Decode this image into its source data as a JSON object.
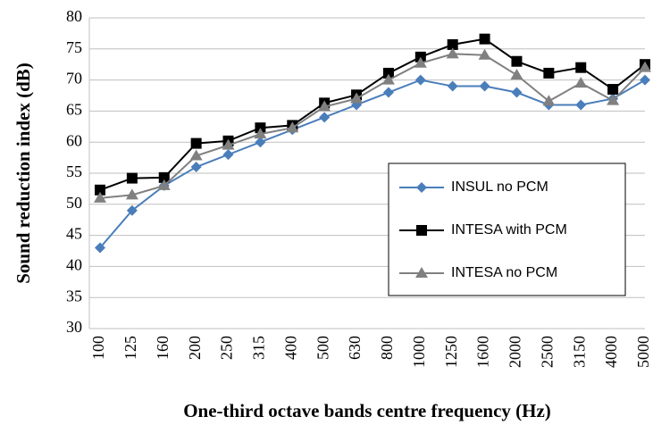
{
  "chart_data": {
    "type": "line",
    "x_label": "One-third octave bands centre frequency (Hz)",
    "y_label": "Sound reduction index (dB)",
    "categories": [
      "100",
      "125",
      "160",
      "200",
      "250",
      "315",
      "400",
      "500",
      "630",
      "800",
      "1000",
      "1250",
      "1600",
      "2000",
      "2500",
      "3150",
      "4000",
      "5000"
    ],
    "series": [
      {
        "name": "INSUL no PCM",
        "color": "#4a7ebb",
        "marker": "diamond",
        "values": [
          43,
          49,
          53,
          56,
          58,
          60,
          62,
          64,
          66,
          68,
          70,
          69,
          69,
          68,
          66,
          66,
          67,
          70
        ]
      },
      {
        "name": "INTESA with PCM",
        "color": "#000000",
        "marker": "square",
        "values": [
          52.3,
          54.2,
          54.3,
          59.8,
          60.2,
          62.3,
          62.7,
          66.3,
          67.6,
          71.1,
          73.7,
          75.7,
          76.6,
          73,
          71.1,
          72,
          68.5,
          72.5
        ]
      },
      {
        "name": "INTESA no PCM",
        "color": "#808080",
        "marker": "triangle",
        "values": [
          51,
          51.5,
          53,
          57.8,
          59.5,
          61.3,
          62.3,
          65.7,
          67,
          70,
          72.7,
          74.2,
          74,
          70.8,
          66.6,
          69.5,
          66.7,
          72
        ]
      }
    ],
    "ylim": [
      30,
      80
    ],
    "yticks": [
      30,
      35,
      40,
      45,
      50,
      55,
      60,
      65,
      70,
      75,
      80
    ],
    "grid": true
  }
}
